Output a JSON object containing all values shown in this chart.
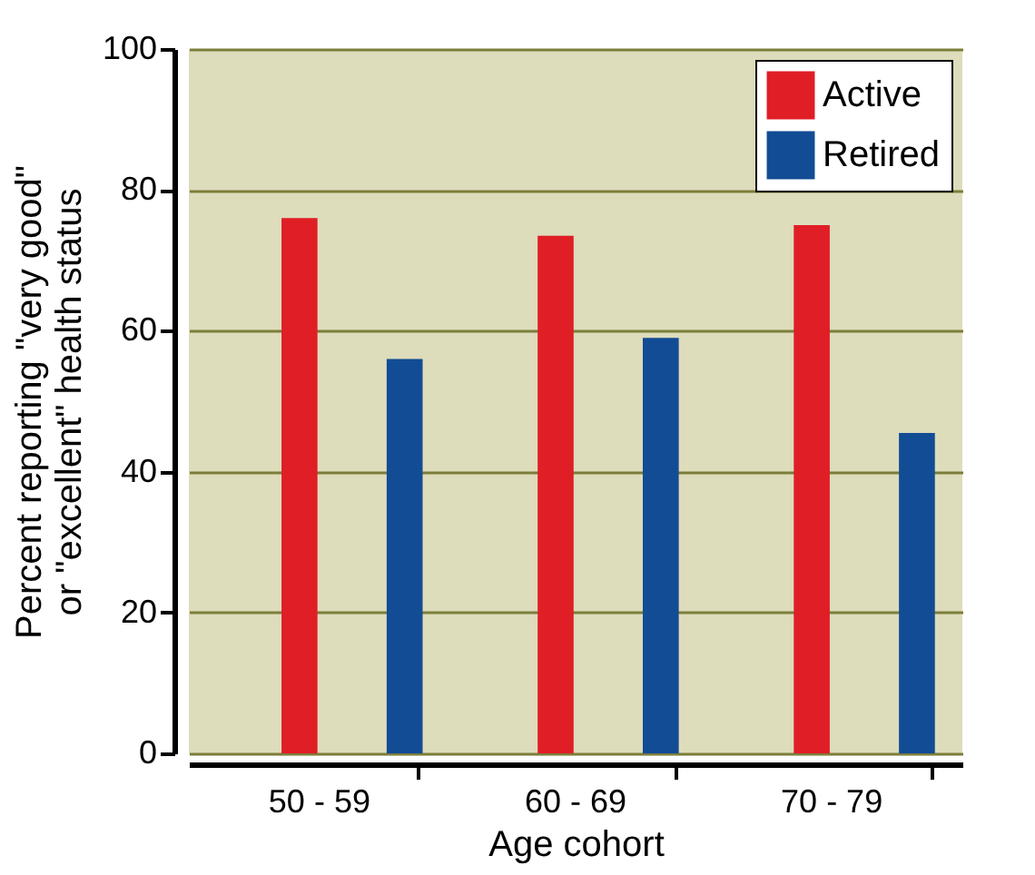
{
  "chart_data": {
    "type": "bar",
    "xlabel": "Age cohort",
    "ylabel": "Percent reporting \"very good\"\nor \"excellent\" health status",
    "categories": [
      "50 - 59",
      "60 - 69",
      "70 - 79"
    ],
    "series": [
      {
        "name": "Active",
        "color": "#e01e26",
        "values": [
          76,
          73.5,
          75
        ]
      },
      {
        "name": "Retired",
        "color": "#124c94",
        "values": [
          56,
          59,
          45.5
        ]
      }
    ],
    "ylim": [
      0,
      100
    ],
    "yticks": [
      0,
      20,
      40,
      60,
      80,
      100
    ],
    "grid": "y",
    "legend": "top right"
  }
}
